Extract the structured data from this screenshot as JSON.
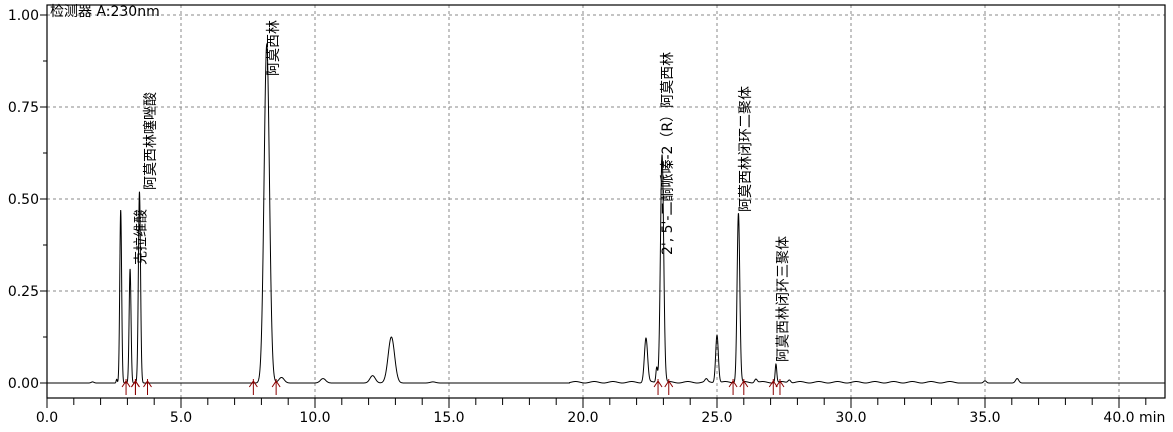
{
  "chart_data": {
    "type": "line",
    "title": "检测器 A:230nm",
    "xlabel": "min",
    "ylabel": "",
    "xlim": [
      0,
      41.7
    ],
    "ylim": [
      -0.04,
      1.03
    ],
    "grid": true,
    "x_ticks": [
      "0.0",
      "5.0",
      "10.0",
      "15.0",
      "20.0",
      "25.0",
      "30.0",
      "35.0",
      "40.0"
    ],
    "x_tick_values": [
      0,
      5,
      10,
      15,
      20,
      25,
      30,
      35,
      40
    ],
    "y_ticks": [
      "0.00",
      "0.25",
      "0.50",
      "0.75",
      "1.00"
    ],
    "y_tick_values": [
      0,
      0.25,
      0.5,
      0.75,
      1.0
    ],
    "line_color": "#000000",
    "marker_color": "#8b0000",
    "peaks": [
      {
        "rt": 1.7,
        "height": 0.003,
        "sigma": 0.05
      },
      {
        "rt": 2.6,
        "height": 0.01,
        "sigma": 0.02
      },
      {
        "rt": 2.75,
        "height": 0.47,
        "sigma": 0.035
      },
      {
        "rt": 3.1,
        "height": 0.31,
        "sigma": 0.035
      },
      {
        "rt": 3.45,
        "height": 0.52,
        "sigma": 0.04
      },
      {
        "rt": 8.2,
        "height": 0.92,
        "sigma": 0.1
      },
      {
        "rt": 8.75,
        "height": 0.015,
        "sigma": 0.1
      },
      {
        "rt": 10.3,
        "height": 0.012,
        "sigma": 0.1
      },
      {
        "rt": 12.15,
        "height": 0.02,
        "sigma": 0.1
      },
      {
        "rt": 12.85,
        "height": 0.125,
        "sigma": 0.12
      },
      {
        "rt": 14.4,
        "height": 0.003,
        "sigma": 0.1
      },
      {
        "rt": 22.35,
        "height": 0.12,
        "sigma": 0.06
      },
      {
        "rt": 22.75,
        "height": 0.04,
        "sigma": 0.03
      },
      {
        "rt": 22.95,
        "height": 0.62,
        "sigma": 0.06
      },
      {
        "rt": 24.6,
        "height": 0.008,
        "sigma": 0.05
      },
      {
        "rt": 25.0,
        "height": 0.13,
        "sigma": 0.05
      },
      {
        "rt": 25.8,
        "height": 0.46,
        "sigma": 0.05
      },
      {
        "rt": 26.45,
        "height": 0.01,
        "sigma": 0.05
      },
      {
        "rt": 27.2,
        "height": 0.05,
        "sigma": 0.03
      },
      {
        "rt": 27.7,
        "height": 0.008,
        "sigma": 0.05
      },
      {
        "rt": 35.0,
        "height": 0.006,
        "sigma": 0.05
      },
      {
        "rt": 36.2,
        "height": 0.012,
        "sigma": 0.06
      }
    ],
    "peak_labels": [
      {
        "rt": 3.45,
        "text": "克拉维酸"
      },
      {
        "rt": 3.8,
        "text": "阿莫西林噻唑酸"
      },
      {
        "rt": 8.4,
        "text": "阿莫西林"
      },
      {
        "rt": 23.1,
        "text": "2', 5'-二酮哌嗪-2（R）阿莫西林"
      },
      {
        "rt": 26.0,
        "text": "阿莫西林闭环二聚体"
      },
      {
        "rt": 27.4,
        "text": "阿莫西林闭环三聚体"
      }
    ],
    "integration_marks": [
      2.95,
      3.3,
      3.3,
      3.75,
      7.7,
      8.55,
      22.8,
      23.2,
      25.6,
      26.0,
      27.1,
      27.35
    ]
  }
}
